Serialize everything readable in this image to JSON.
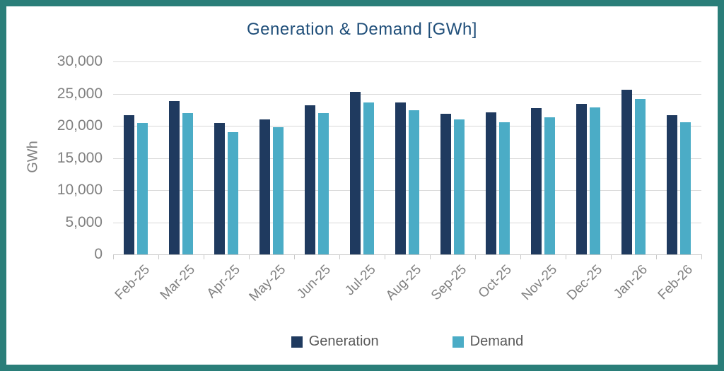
{
  "chart_data": {
    "type": "bar",
    "title": "Generation & Demand [GWh]",
    "ylabel": "GWh",
    "categories": [
      "Feb-25",
      "Mar-25",
      "Apr-25",
      "May-25",
      "Jun-25",
      "Jul-25",
      "Aug-25",
      "Sep-25",
      "Oct-25",
      "Nov-25",
      "Dec-25",
      "Jan-26",
      "Feb-26"
    ],
    "series": [
      {
        "name": "Generation",
        "color": "#1F3A5F",
        "values": [
          21700,
          23900,
          20400,
          21000,
          23200,
          25300,
          23600,
          21900,
          22100,
          22700,
          23400,
          25600,
          21700
        ]
      },
      {
        "name": "Demand",
        "color": "#4BACC6",
        "values": [
          20400,
          22000,
          19000,
          19800,
          22000,
          23600,
          22400,
          21000,
          20500,
          21300,
          22900,
          24200,
          20500
        ]
      }
    ],
    "ylim": [
      0,
      30000
    ],
    "ytick_step": 5000,
    "ytick_labels": [
      "0",
      "5,000",
      "10,000",
      "15,000",
      "20,000",
      "25,000",
      "30,000"
    ],
    "grid": true,
    "legend_position": "bottom"
  },
  "colors": {
    "frame_border": "#2A7E79",
    "title_text": "#1F4E79",
    "axis_text": "#808080",
    "legend_text": "#595959",
    "gridline": "#D9D9D9",
    "axis_line": "#C8C8C8",
    "generation": "#1F3A5F",
    "demand": "#4BACC6"
  }
}
